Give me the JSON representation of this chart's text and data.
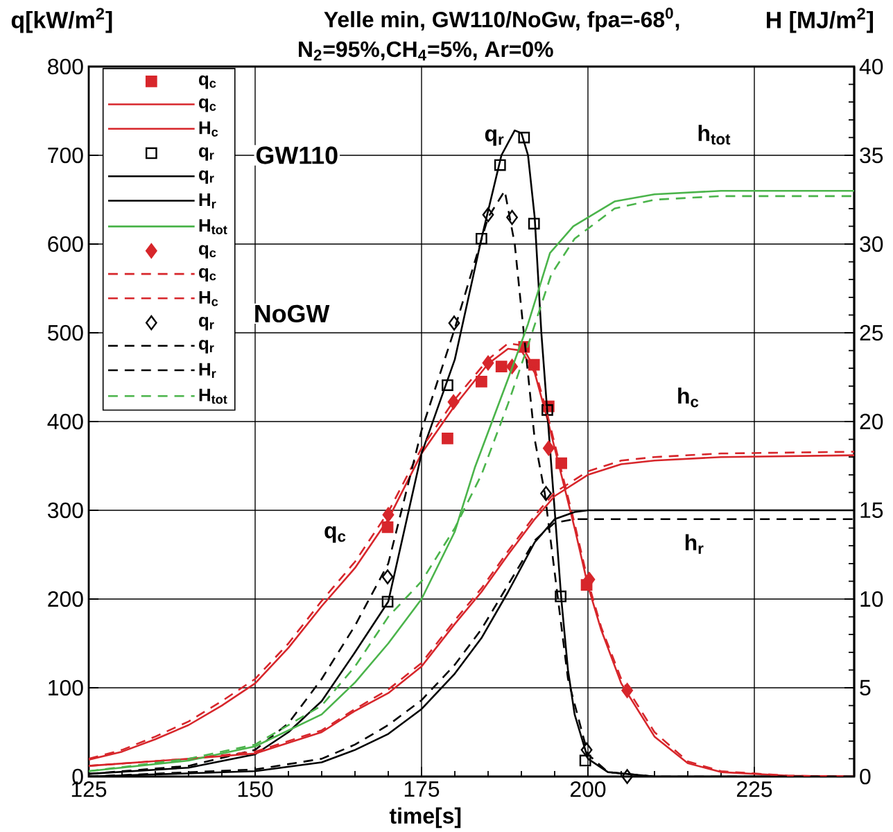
{
  "chart_data": {
    "type": "line",
    "title": "Yelle min, GW110/NoGw, fpa=-68$^{0}$,",
    "subtitle": "N$_{2}$=95%,CH$_{4}$=5%, Ar=0%",
    "xlabel": "time[s]",
    "ylabel": "q[kW/m$^{2}$]",
    "y2label": "H [MJ/m$^{2}$]",
    "xlim": [
      125,
      240
    ],
    "xticks": [
      125,
      150,
      175,
      200,
      225
    ],
    "ylim": [
      0,
      800
    ],
    "yticks": [
      0,
      100,
      200,
      300,
      400,
      500,
      600,
      700,
      800
    ],
    "y2lim": [
      0,
      40
    ],
    "y2ticks": [
      0,
      5,
      10,
      15,
      20,
      25,
      30,
      35,
      40
    ],
    "grid": true,
    "legend": "top left",
    "series": [
      {
        "name": "q$_{c}$",
        "type": "scatter",
        "marker": "square",
        "color": "#d7262b",
        "x": [
          169.9,
          178.9,
          184,
          187,
          190.4,
          191.9,
          194.1,
          196,
          199.8
        ],
        "values": [
          281,
          381,
          445,
          462,
          484,
          464,
          417,
          353,
          216
        ]
      },
      {
        "name": "q$_{c}$",
        "line_style": "solid",
        "color": "#d7262b",
        "x": [
          125,
          130,
          135,
          140,
          145,
          150,
          155,
          160,
          165,
          170,
          175,
          180,
          185,
          188,
          190,
          192,
          194,
          196,
          198,
          200,
          202,
          205,
          210,
          215,
          220,
          230,
          240
        ],
        "values": [
          19,
          28,
          42,
          58,
          80,
          105,
          145,
          192,
          235,
          290,
          364,
          418,
          465,
          482,
          480,
          455,
          400,
          340,
          280,
          215,
          165,
          105,
          45,
          15,
          5,
          1,
          0
        ]
      },
      {
        "name": "H$_{c}$",
        "line_style": "solid",
        "axis": "y2",
        "color": "#d7262b",
        "x": [
          125,
          140,
          150,
          160,
          165,
          170,
          175,
          180,
          184,
          188,
          192,
          195,
          200,
          205,
          210,
          220,
          240
        ],
        "values": [
          0.6,
          1.0,
          1.3,
          2.5,
          3.7,
          4.7,
          6.2,
          8.6,
          10.4,
          12.5,
          14.5,
          15.8,
          17.0,
          17.6,
          17.8,
          18.0,
          18.1
        ]
      },
      {
        "name": "q$_{r}$",
        "type": "scatter",
        "marker": "square",
        "color": "#000000",
        "x": [
          169.9,
          178.9,
          184,
          186.8,
          190.4,
          191.9,
          193.9,
          195.9,
          199.6
        ],
        "values": [
          197,
          441,
          606,
          689,
          720,
          623,
          413,
          203,
          18
        ]
      },
      {
        "name": "q$_{r}$",
        "line_style": "solid",
        "color": "#000000",
        "x": [
          125,
          140,
          150,
          155,
          160,
          165,
          170,
          175,
          180,
          184,
          187,
          189,
          190,
          191,
          192,
          193,
          194,
          195,
          196,
          197,
          198,
          200,
          203,
          210,
          240
        ],
        "values": [
          3,
          10,
          25,
          50,
          85,
          140,
          197,
          364,
          470,
          606,
          700,
          728,
          725,
          700,
          630,
          500,
          400,
          300,
          200,
          120,
          70,
          20,
          5,
          0,
          0
        ]
      },
      {
        "name": "H$_{r}$",
        "line_style": "solid",
        "axis": "y2",
        "color": "#000000",
        "x": [
          125,
          150,
          160,
          165,
          170,
          175,
          180,
          184,
          188,
          192,
          195,
          198,
          200,
          210,
          240
        ],
        "values": [
          0,
          0.3,
          0.8,
          1.5,
          2.4,
          3.8,
          5.8,
          7.8,
          10.4,
          13.2,
          14.5,
          14.9,
          15,
          15,
          15
        ]
      },
      {
        "name": "H$_{tot}$",
        "line_style": "solid",
        "axis": "y2",
        "color": "#4bb44b",
        "x": [
          125,
          140,
          150,
          160,
          165,
          170,
          175,
          180,
          183,
          188,
          191,
          194.3,
          197.8,
          204,
          210,
          220,
          240
        ],
        "values": [
          0.3,
          0.9,
          1.7,
          3.5,
          5.3,
          7.5,
          10,
          13.8,
          17.4,
          22.4,
          25.5,
          29.5,
          31,
          32.4,
          32.8,
          33,
          33
        ]
      },
      {
        "name": "q$_{c}$",
        "type": "scatter",
        "marker": "diamond",
        "color": "#d7262b",
        "x": [
          170,
          179.8,
          185,
          188.6,
          194.1,
          200.2,
          205.9
        ],
        "values": [
          295,
          422,
          466,
          462,
          370,
          222,
          97
        ]
      },
      {
        "name": "q$_{c}$",
        "line_style": "dashed",
        "color": "#d7262b",
        "x": [
          125,
          130,
          135,
          140,
          145,
          150,
          155,
          160,
          165,
          170,
          175,
          180,
          185,
          188,
          190,
          192,
          194,
          196,
          198,
          200,
          202,
          205,
          210,
          215,
          220,
          230,
          240
        ],
        "values": [
          20,
          30,
          45,
          62,
          85,
          110,
          150,
          198,
          242,
          298,
          370,
          425,
          470,
          488,
          486,
          460,
          405,
          345,
          285,
          220,
          168,
          110,
          50,
          17,
          6,
          1,
          0
        ]
      },
      {
        "name": "H$_{c}$",
        "line_style": "dashed",
        "axis": "y2",
        "color": "#d7262b",
        "x": [
          125,
          140,
          150,
          160,
          165,
          170,
          175,
          180,
          184,
          188,
          192,
          195,
          200,
          205,
          210,
          220,
          240
        ],
        "values": [
          0.6,
          1.0,
          1.4,
          2.6,
          3.8,
          4.9,
          6.4,
          8.8,
          10.6,
          12.7,
          14.7,
          16.0,
          17.2,
          17.8,
          18.0,
          18.2,
          18.3
        ]
      },
      {
        "name": "q$_{r}$",
        "type": "scatter",
        "marker": "diamond",
        "color": "#000000",
        "x": [
          169.9,
          179.9,
          185,
          188.6,
          193.7,
          199.8,
          205.9
        ],
        "values": [
          225,
          511,
          633,
          630,
          319,
          30,
          0
        ]
      },
      {
        "name": "q$_{r}$",
        "line_style": "dashed",
        "color": "#000000",
        "x": [
          125,
          140,
          150,
          155,
          160,
          165,
          170,
          175,
          180,
          185,
          187.5,
          189,
          190.5,
          192,
          193.5,
          195,
          197,
          200,
          203,
          210,
          240
        ],
        "values": [
          3,
          12,
          30,
          60,
          110,
          170,
          240,
          390,
          505,
          630,
          660,
          600,
          490,
          380,
          320,
          230,
          110,
          25,
          5,
          0,
          0
        ]
      },
      {
        "name": "H$_{r}$",
        "line_style": "dashed",
        "axis": "y2",
        "color": "#000000",
        "x": [
          125,
          150,
          160,
          165,
          170,
          175,
          180,
          184,
          188,
          192,
          195,
          198,
          200,
          210,
          240
        ],
        "values": [
          0,
          0.4,
          1.0,
          1.8,
          2.9,
          4.3,
          6.3,
          8.3,
          10.8,
          13.3,
          14.3,
          14.5,
          14.5,
          14.5,
          14.5
        ]
      },
      {
        "name": "H$_{tot}$",
        "line_style": "dashed",
        "axis": "y2",
        "color": "#4bb44b",
        "x": [
          125,
          140,
          150,
          160,
          165,
          170,
          175,
          180,
          184,
          188,
          191,
          194.5,
          198,
          204,
          210,
          220,
          240
        ],
        "values": [
          0.3,
          1.0,
          1.8,
          4.0,
          6.2,
          9.0,
          11,
          14,
          17,
          21,
          24.3,
          28.3,
          30.3,
          32,
          32.5,
          32.7,
          32.7
        ]
      }
    ],
    "annotations": [
      "GW110",
      "NoGW",
      "q$_{c}$",
      "q$_{r}$",
      "h$_{tot}$",
      "h$_{c}$",
      "h$_{r}$"
    ]
  }
}
